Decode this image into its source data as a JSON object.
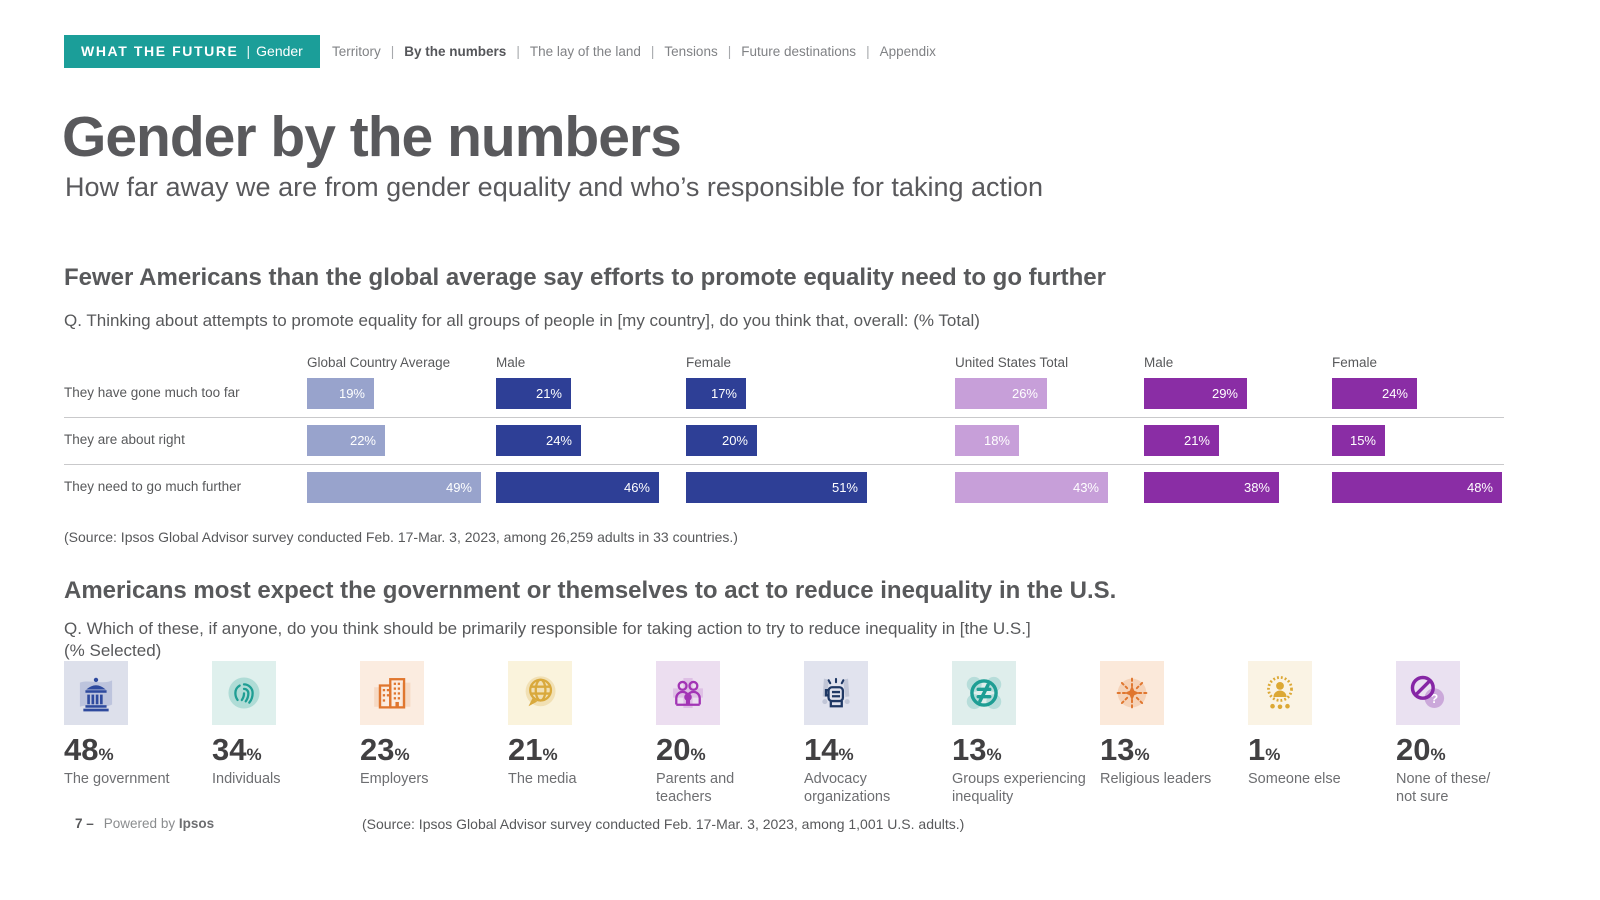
{
  "brand": {
    "badge_bold": "WHAT THE FUTURE",
    "badge_sep": "|",
    "badge_light": "Gender",
    "badge_bg": "#1B9E99"
  },
  "nav": {
    "items": [
      {
        "label": "Territory",
        "active": false
      },
      {
        "label": "By the numbers",
        "active": true
      },
      {
        "label": "The lay of the land",
        "active": false
      },
      {
        "label": "Tensions",
        "active": false
      },
      {
        "label": "Future destinations",
        "active": false
      },
      {
        "label": "Appendix",
        "active": false
      }
    ]
  },
  "header": {
    "title": "Gender by the numbers",
    "subtitle": "How far away we are from gender equality and who’s responsible for taking action"
  },
  "section1": {
    "heading": "Fewer Americans than the global average say efforts to promote equality need to go further",
    "question": "Q. Thinking about attempts to promote equality for all groups of people in [my country], do you think that, overall: (% Total)",
    "source": "(Source: Ipsos Global Advisor survey conducted Feb. 17-Mar. 3, 2023, among 26,259 adults in 33 countries.)"
  },
  "section2": {
    "heading": "Americans most expect the government or themselves to act to reduce inequality in the U.S.",
    "question_line1": "Q. Which of these, if anyone, do you think should be primarily responsible for taking action to try to reduce inequality in [the U.S.]",
    "question_line2": "(% Selected)",
    "source": "(Source: Ipsos Global Advisor survey conducted Feb. 17-Mar. 3, 2023, among 1,001 U.S. adults.)",
    "stats": [
      {
        "value": "48",
        "label": "The government",
        "icon": "government-icon",
        "tile_bg": "#DDE0EB",
        "accent": "#2E4A9E"
      },
      {
        "value": "34",
        "label": "Individuals",
        "icon": "fingerprint-icon",
        "tile_bg": "#DFF0ED",
        "accent": "#1E9E94"
      },
      {
        "value": "23",
        "label": "Employers",
        "icon": "buildings-icon",
        "tile_bg": "#FBECE0",
        "accent": "#E0762E"
      },
      {
        "value": "21",
        "label": "The media",
        "icon": "globe-speech-icon",
        "tile_bg": "#FAF3DC",
        "accent": "#D9A93C"
      },
      {
        "value": "20",
        "label": "Parents and\nteachers",
        "icon": "family-icon",
        "tile_bg": "#ECDEF0",
        "accent": "#A234B5"
      },
      {
        "value": "14",
        "label": "Advocacy\norganizations",
        "icon": "fist-icon",
        "tile_bg": "#E1E3EE",
        "accent": "#1F3864"
      },
      {
        "value": "13",
        "label": "Groups experiencing\ninequality",
        "icon": "not-equal-icon",
        "tile_bg": "#DFEEEC",
        "accent": "#1E9E94"
      },
      {
        "value": "13",
        "label": "Religious leaders",
        "icon": "starburst-icon",
        "tile_bg": "#FBE9DA",
        "accent": "#E0762E"
      },
      {
        "value": "1",
        "label": "Someone else",
        "icon": "person-icon",
        "tile_bg": "#FAF3E4",
        "accent": "#DCA835"
      },
      {
        "value": "20",
        "label": "None of these/\nnot sure",
        "icon": "no-symbol-icon",
        "tile_bg": "#EAE1F1",
        "accent": "#8626A5"
      }
    ]
  },
  "footer": {
    "page": "7 –",
    "powered_prefix": "Powered by ",
    "powered_brand": "Ipsos"
  },
  "chart_data": [
    {
      "type": "bar",
      "orientation": "horizontal",
      "title": "Fewer Americans than the global average say efforts to promote equality need to go further",
      "question": "Q. Thinking about attempts to promote equality for all groups of people in [my country], do you think that, overall: (% Total)",
      "unit": "%",
      "xlim": [
        0,
        55
      ],
      "grid": false,
      "legend_position": "column-headers",
      "categories": [
        "They have gone much too far",
        "They are about right",
        "They need to go much further"
      ],
      "series": [
        {
          "name": "Global Country Average",
          "group": "Global",
          "color": "#98A3CC",
          "values": [
            19,
            22,
            49
          ]
        },
        {
          "name": "Male",
          "group": "Global",
          "color": "#2E3F96",
          "values": [
            21,
            24,
            46
          ]
        },
        {
          "name": "Female",
          "group": "Global",
          "color": "#2E3F96",
          "values": [
            17,
            20,
            51
          ]
        },
        {
          "name": "United States Total",
          "group": "United States",
          "color": "#C79FD9",
          "values": [
            26,
            18,
            43
          ]
        },
        {
          "name": "Male",
          "group": "United States",
          "color": "#8A2DA5",
          "values": [
            29,
            21,
            38
          ]
        },
        {
          "name": "Female",
          "group": "United States",
          "color": "#8A2DA5",
          "values": [
            24,
            15,
            48
          ]
        }
      ],
      "source": "(Source: Ipsos Global Advisor survey conducted Feb. 17-Mar. 3, 2023, among 26,259 adults in 33 countries.)"
    },
    {
      "type": "bar",
      "subtype": "pictograph-stats",
      "title": "Americans most expect the government or themselves to act to reduce inequality in the U.S.",
      "question": "Q. Which of these, if anyone, do you think should be primarily responsible for taking action to try to reduce inequality in [the U.S.] (% Selected)",
      "unit": "%",
      "categories": [
        "The government",
        "Individuals",
        "Employers",
        "The media",
        "Parents and teachers",
        "Advocacy organizations",
        "Groups experiencing inequality",
        "Religious leaders",
        "Someone else",
        "None of these/not sure"
      ],
      "values": [
        48,
        34,
        23,
        21,
        20,
        14,
        13,
        13,
        1,
        20
      ],
      "source": "(Source: Ipsos Global Advisor survey conducted Feb. 17-Mar. 3, 2023, among 1,001 U.S. adults.)"
    }
  ]
}
